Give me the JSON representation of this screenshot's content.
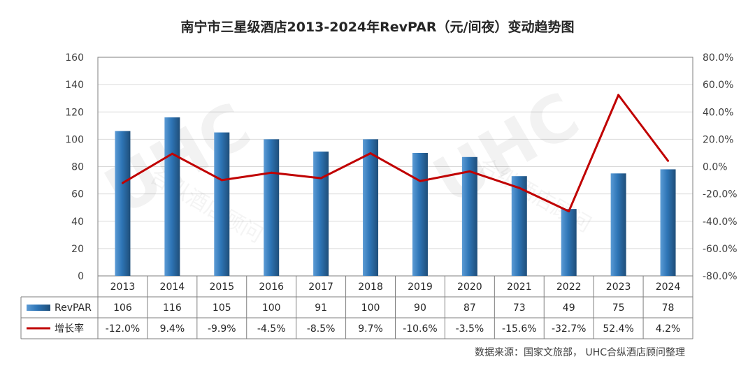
{
  "chart_data": {
    "type": "bar+line",
    "title": "南宁市三星级酒店2013-2024年RevPAR（元/间夜）变动趋势图",
    "categories": [
      "2013",
      "2014",
      "2015",
      "2016",
      "2017",
      "2018",
      "2019",
      "2020",
      "2021",
      "2022",
      "2023",
      "2024"
    ],
    "series": [
      {
        "name": "RevPAR",
        "type": "bar",
        "axis": "left",
        "values": [
          106,
          116,
          105,
          100,
          91,
          100,
          90,
          87,
          73,
          49,
          75,
          78
        ],
        "labels": [
          "106",
          "116",
          "105",
          "100",
          "91",
          "100",
          "90",
          "87",
          "73",
          "49",
          "75",
          "78"
        ],
        "color": "#2e75b6"
      },
      {
        "name": "增长率",
        "type": "line",
        "axis": "right",
        "values": [
          -12.0,
          9.4,
          -9.9,
          -4.5,
          -8.5,
          9.7,
          -10.6,
          -3.5,
          -15.6,
          -32.7,
          52.4,
          4.2
        ],
        "labels": [
          "-12.0%",
          "9.4%",
          "-9.9%",
          "-4.5%",
          "-8.5%",
          "9.7%",
          "-10.6%",
          "-3.5%",
          "-15.6%",
          "-32.7%",
          "52.4%",
          "4.2%"
        ],
        "color": "#c00000"
      }
    ],
    "y_left": {
      "min": 0,
      "max": 160,
      "ticks": [
        "0",
        "20",
        "40",
        "60",
        "80",
        "100",
        "120",
        "140",
        "160"
      ]
    },
    "y_right": {
      "min": -80,
      "max": 80,
      "ticks": [
        "-80.0%",
        "-60.0%",
        "-40.0%",
        "-20.0%",
        "0.0%",
        "20.0%",
        "40.0%",
        "60.0%",
        "80.0%"
      ]
    },
    "grid": true,
    "legend": "data-table"
  },
  "source": "数据来源：国家文旅部， UHC合纵酒店顾问整理",
  "watermark": "UHC 合纵酒店顾问 UNITED HOTEL CONSULTANTS"
}
